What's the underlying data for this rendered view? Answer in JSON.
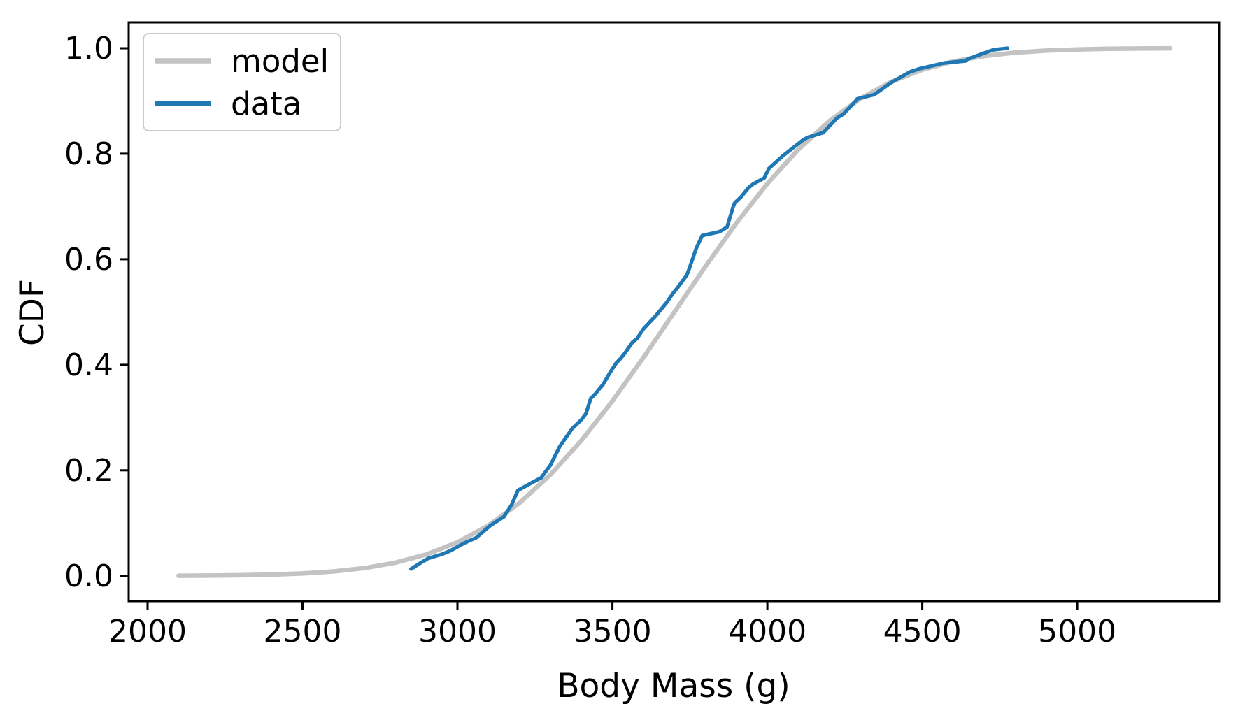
{
  "figure": {
    "background": "#ffffff"
  },
  "chart_data": {
    "type": "line",
    "title": "",
    "xlabel": "Body Mass (g)",
    "ylabel": "CDF",
    "xlim": [
      1939,
      5458
    ],
    "ylim": [
      -0.048,
      1.049
    ],
    "xticks": [
      2000,
      2500,
      3000,
      3500,
      4000,
      4500,
      5000
    ],
    "xtick_labels": [
      "2000",
      "2500",
      "3000",
      "3500",
      "4000",
      "4500",
      "5000"
    ],
    "yticks": [
      0.0,
      0.2,
      0.4,
      0.6,
      0.8,
      1.0
    ],
    "ytick_labels": [
      "0.0",
      "0.2",
      "0.4",
      "0.6",
      "0.8",
      "1.0"
    ],
    "grid": false,
    "legend": {
      "position": "upper left",
      "entries": [
        {
          "label": "model",
          "color": "#c3c3c3"
        },
        {
          "label": "data",
          "color": "#1f77b4"
        }
      ]
    },
    "series": [
      {
        "name": "model",
        "color": "#c3c3c3",
        "linewidth": 6.5,
        "x": [
          2100,
          2200,
          2300,
          2400,
          2500,
          2600,
          2700,
          2800,
          2900,
          3000,
          3100,
          3200,
          3300,
          3400,
          3500,
          3600,
          3700,
          3800,
          3900,
          4000,
          4100,
          4200,
          4300,
          4400,
          4500,
          4600,
          4700,
          4800,
          4900,
          5000,
          5100,
          5200,
          5300
        ],
        "y": [
          0.0002,
          0.0005,
          0.0011,
          0.0023,
          0.0045,
          0.0083,
          0.0147,
          0.025,
          0.0407,
          0.0636,
          0.0956,
          0.138,
          0.1918,
          0.2566,
          0.3315,
          0.4137,
          0.5,
          0.5863,
          0.6685,
          0.7434,
          0.8082,
          0.862,
          0.9044,
          0.9364,
          0.9593,
          0.975,
          0.9853,
          0.9917,
          0.9955,
          0.9977,
          0.9989,
          0.9995,
          0.9998
        ]
      },
      {
        "name": "data",
        "color": "#1f77b4",
        "linewidth": 5.2,
        "x": [
          2850,
          2885,
          2905,
          2950,
          2975,
          3025,
          3060,
          3105,
          3150,
          3175,
          3195,
          3235,
          3270,
          3300,
          3330,
          3370,
          3400,
          3415,
          3430,
          3445,
          3470,
          3490,
          3512,
          3525,
          3540,
          3565,
          3580,
          3600,
          3640,
          3675,
          3695,
          3710,
          3740,
          3748,
          3770,
          3790,
          3845,
          3870,
          3890,
          3895,
          3915,
          3940,
          3955,
          3990,
          4005,
          4050,
          4115,
          4130,
          4180,
          4190,
          4225,
          4245,
          4285,
          4290,
          4345,
          4400,
          4460,
          4490,
          4570,
          4640,
          4645,
          4705,
          4730,
          4775
        ],
        "y": [
          0.013,
          0.026,
          0.033,
          0.041,
          0.047,
          0.063,
          0.072,
          0.095,
          0.112,
          0.135,
          0.162,
          0.175,
          0.186,
          0.21,
          0.245,
          0.279,
          0.296,
          0.308,
          0.336,
          0.345,
          0.363,
          0.383,
          0.403,
          0.411,
          0.422,
          0.443,
          0.45,
          0.468,
          0.493,
          0.518,
          0.535,
          0.546,
          0.57,
          0.582,
          0.62,
          0.645,
          0.652,
          0.661,
          0.7,
          0.707,
          0.718,
          0.736,
          0.743,
          0.754,
          0.772,
          0.796,
          0.826,
          0.831,
          0.84,
          0.846,
          0.868,
          0.875,
          0.9,
          0.904,
          0.912,
          0.935,
          0.955,
          0.961,
          0.972,
          0.976,
          0.979,
          0.992,
          0.997,
          1.0
        ]
      }
    ]
  }
}
